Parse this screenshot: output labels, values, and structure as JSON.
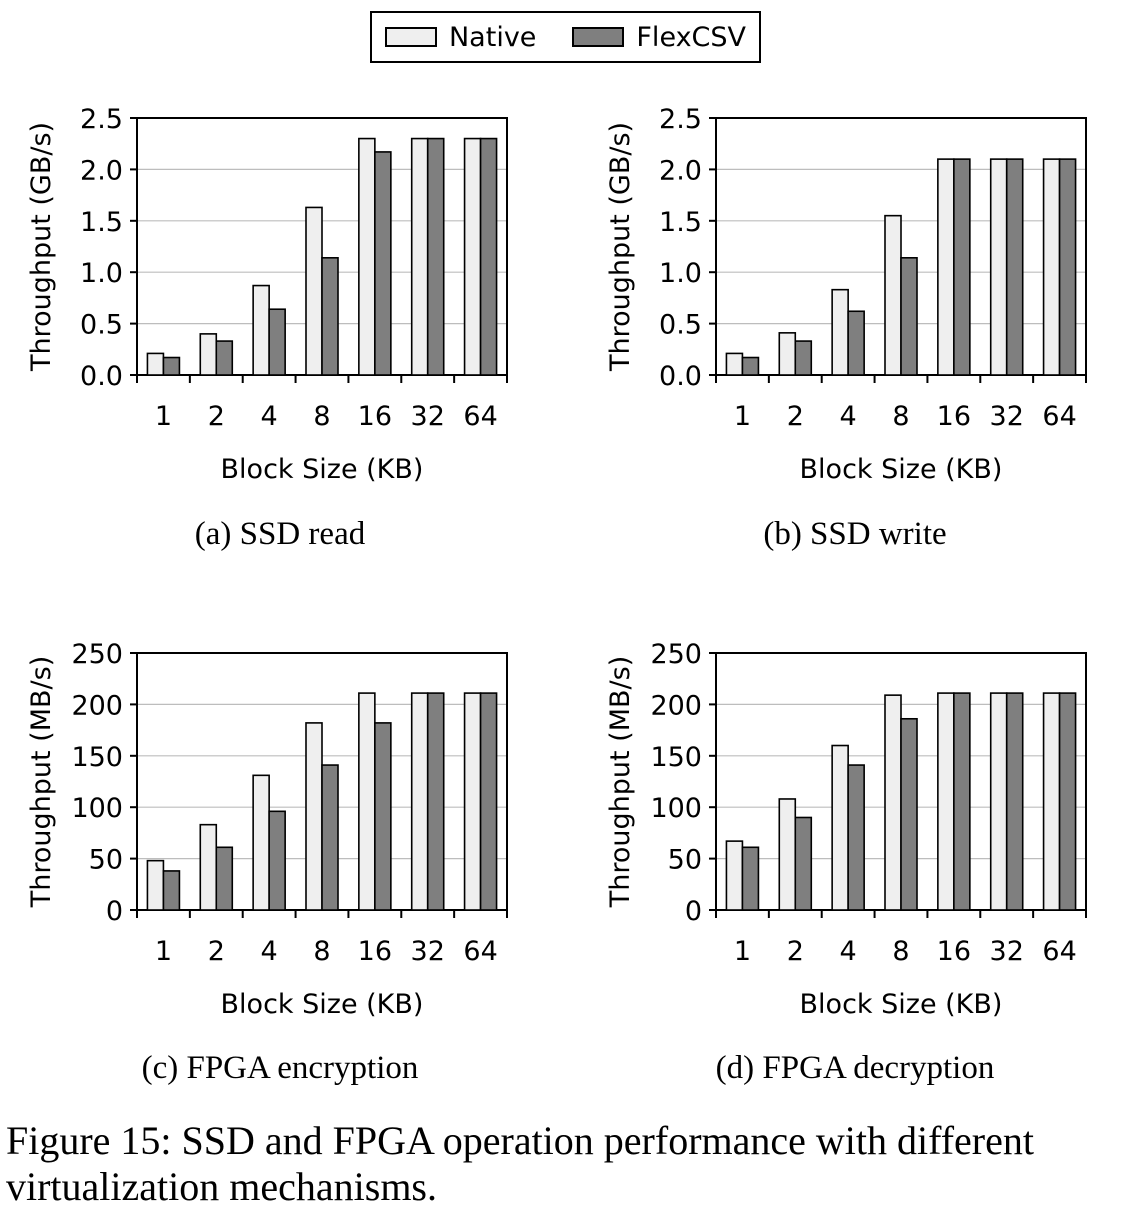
{
  "legend": [
    {
      "name": "Native",
      "color": "#efefef"
    },
    {
      "name": "FlexCSV",
      "color": "#7f7f7f"
    }
  ],
  "figure_caption": "Figure 15: SSD and FPGA operation performance with different virtualization mechanisms.",
  "chart_data": [
    {
      "type": "bar",
      "caption": "(a) SSD read",
      "categories": [
        "1",
        "2",
        "4",
        "8",
        "16",
        "32",
        "64"
      ],
      "xlabel": "Block Size (KB)",
      "ylabel": "Throughput (GB/s)",
      "ylim": [
        0,
        2.5
      ],
      "yticks": [
        "0.0",
        "0.5",
        "1.0",
        "1.5",
        "2.0",
        "2.5"
      ],
      "grid": true,
      "series": [
        {
          "name": "Native",
          "values": [
            0.21,
            0.4,
            0.87,
            1.63,
            2.3,
            2.3,
            2.3
          ]
        },
        {
          "name": "FlexCSV",
          "values": [
            0.17,
            0.33,
            0.64,
            1.14,
            2.17,
            2.3,
            2.3
          ]
        }
      ]
    },
    {
      "type": "bar",
      "caption": "(b) SSD write",
      "categories": [
        "1",
        "2",
        "4",
        "8",
        "16",
        "32",
        "64"
      ],
      "xlabel": "Block Size (KB)",
      "ylabel": "Throughput (GB/s)",
      "ylim": [
        0,
        2.5
      ],
      "yticks": [
        "0.0",
        "0.5",
        "1.0",
        "1.5",
        "2.0",
        "2.5"
      ],
      "grid": true,
      "series": [
        {
          "name": "Native",
          "values": [
            0.21,
            0.41,
            0.83,
            1.55,
            2.1,
            2.1,
            2.1
          ]
        },
        {
          "name": "FlexCSV",
          "values": [
            0.17,
            0.33,
            0.62,
            1.14,
            2.1,
            2.1,
            2.1
          ]
        }
      ]
    },
    {
      "type": "bar",
      "caption": "(c) FPGA encryption",
      "categories": [
        "1",
        "2",
        "4",
        "8",
        "16",
        "32",
        "64"
      ],
      "xlabel": "Block Size (KB)",
      "ylabel": "Throughput (MB/s)",
      "ylim": [
        0,
        250
      ],
      "yticks": [
        "0",
        "50",
        "100",
        "150",
        "200",
        "250"
      ],
      "grid": true,
      "series": [
        {
          "name": "Native",
          "values": [
            48,
            83,
            131,
            182,
            211,
            211,
            211
          ]
        },
        {
          "name": "FlexCSV",
          "values": [
            38,
            61,
            96,
            141,
            182,
            211,
            211
          ]
        }
      ]
    },
    {
      "type": "bar",
      "caption": "(d) FPGA decryption",
      "categories": [
        "1",
        "2",
        "4",
        "8",
        "16",
        "32",
        "64"
      ],
      "xlabel": "Block Size (KB)",
      "ylabel": "Throughput (MB/s)",
      "ylim": [
        0,
        250
      ],
      "yticks": [
        "0",
        "50",
        "100",
        "150",
        "200",
        "250"
      ],
      "grid": true,
      "series": [
        {
          "name": "Native",
          "values": [
            67,
            108,
            160,
            209,
            211,
            211,
            211
          ]
        },
        {
          "name": "FlexCSV",
          "values": [
            61,
            90,
            141,
            186,
            211,
            211,
            211
          ]
        }
      ]
    }
  ]
}
